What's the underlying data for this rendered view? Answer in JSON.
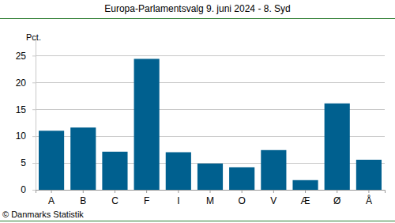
{
  "chart_data": {
    "type": "bar",
    "title": "Europa-Parlamentsvalg 9. juni 2024 - 8. Syd",
    "ylabel": "Pct.",
    "source": "© Danmarks Statistik",
    "categories": [
      "A",
      "B",
      "C",
      "F",
      "I",
      "M",
      "O",
      "V",
      "Æ",
      "Ø",
      "Å"
    ],
    "values": [
      11.0,
      11.6,
      7.1,
      24.4,
      7.0,
      4.9,
      4.2,
      7.4,
      1.8,
      16.1,
      5.6
    ],
    "color": "#00608f",
    "ylim": [
      0,
      28
    ],
    "yticks": [
      0,
      5,
      10,
      15,
      20,
      25
    ],
    "grid": true
  }
}
